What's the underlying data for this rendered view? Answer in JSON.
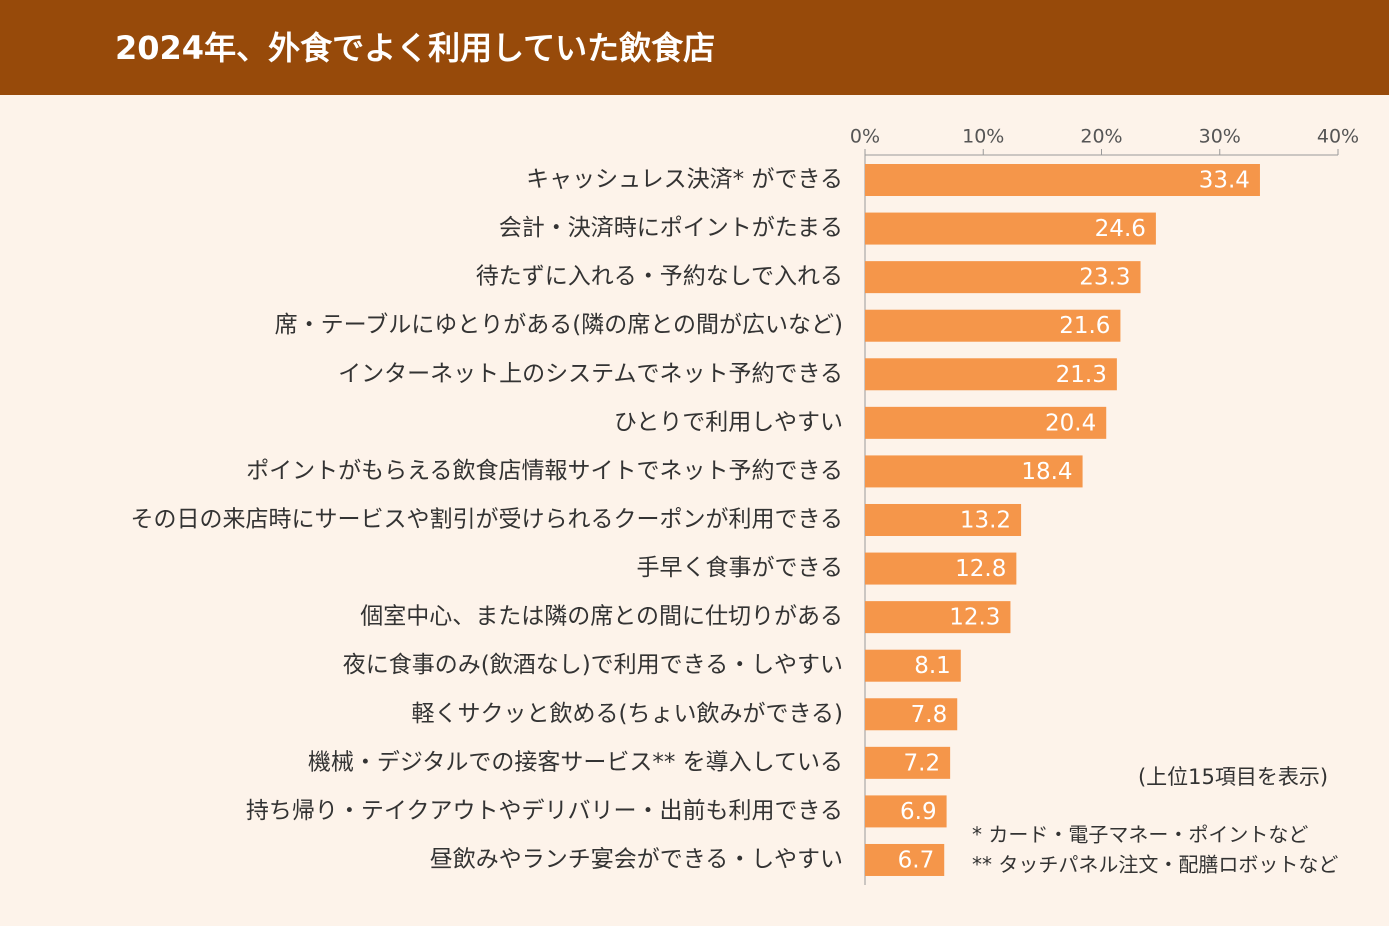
{
  "chart_data": {
    "type": "bar",
    "orientation": "horizontal",
    "title": "2024年、外食でよく利用していた飲食店",
    "categories": [
      "キャッシュレス決済* ができる",
      "会計・決済時にポイントがたまる",
      "待たずに入れる・予約なしで入れる",
      "席・テーブルにゆとりがある(隣の席との間が広いなど)",
      "インターネット上のシステムでネット予約できる",
      "ひとりで利用しやすい",
      "ポイントがもらえる飲食店情報サイトでネット予約できる",
      "その日の来店時にサービスや割引が受けられるクーポンが利用できる",
      "手早く食事ができる",
      "個室中心、または隣の席との間に仕切りがある",
      "夜に食事のみ(飲酒なし)で利用できる・しやすい",
      "軽くサクッと飲める(ちょい飲みができる)",
      "機械・デジタルでの接客サービス** を導入している",
      "持ち帰り・テイクアウトやデリバリー・出前も利用できる",
      "昼飲みやランチ宴会ができる・しやすい"
    ],
    "values": [
      33.4,
      24.6,
      23.3,
      21.6,
      21.3,
      20.4,
      18.4,
      13.2,
      12.8,
      12.3,
      8.1,
      7.8,
      7.2,
      6.9,
      6.7
    ],
    "color": "#f5964a",
    "xlim": [
      0,
      40
    ],
    "xticks": [
      {
        "value": 0,
        "label": "0%"
      },
      {
        "value": 10,
        "label": "10%"
      },
      {
        "value": 20,
        "label": "20%"
      },
      {
        "value": 30,
        "label": "30%"
      },
      {
        "value": 40,
        "label": "40%"
      }
    ],
    "annotations": [
      "(上位15項目を表示)",
      "* カード・電子マネー・ポイントなど",
      "** タッチパネル注文・配膳ロボットなど"
    ]
  }
}
